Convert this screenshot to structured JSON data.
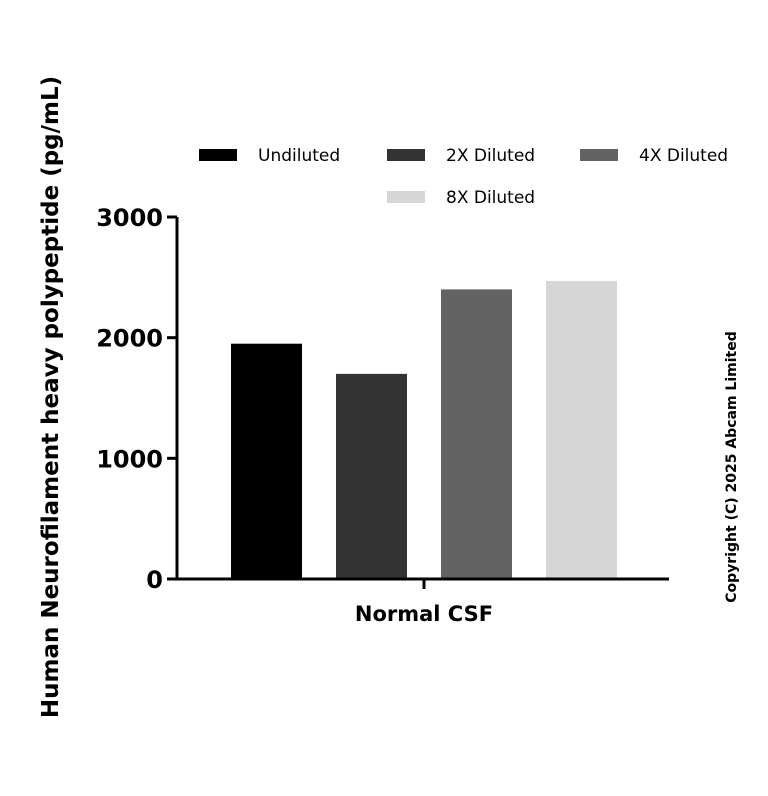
{
  "chart_data": {
    "type": "bar",
    "title": "",
    "xlabel": "",
    "ylabel": "Human Neurofilament heavy polypeptide (pg/mL)",
    "categories": [
      "Normal CSF"
    ],
    "series": [
      {
        "name": "Undiluted",
        "values": [
          1950
        ],
        "color": "#000000"
      },
      {
        "name": "2X Diluted",
        "values": [
          1700
        ],
        "color": "#333333"
      },
      {
        "name": "4X Diluted",
        "values": [
          2400
        ],
        "color": "#636363"
      },
      {
        "name": "8X Diluted",
        "values": [
          2470
        ],
        "color": "#d6d6d6"
      }
    ],
    "ylim": [
      0,
      3000
    ],
    "yticks": [
      "0",
      "1000",
      "2000",
      "3000"
    ],
    "grid": false,
    "legend_position": "top",
    "copyright": "Copyright (C) 2025 Abcam Limited"
  }
}
